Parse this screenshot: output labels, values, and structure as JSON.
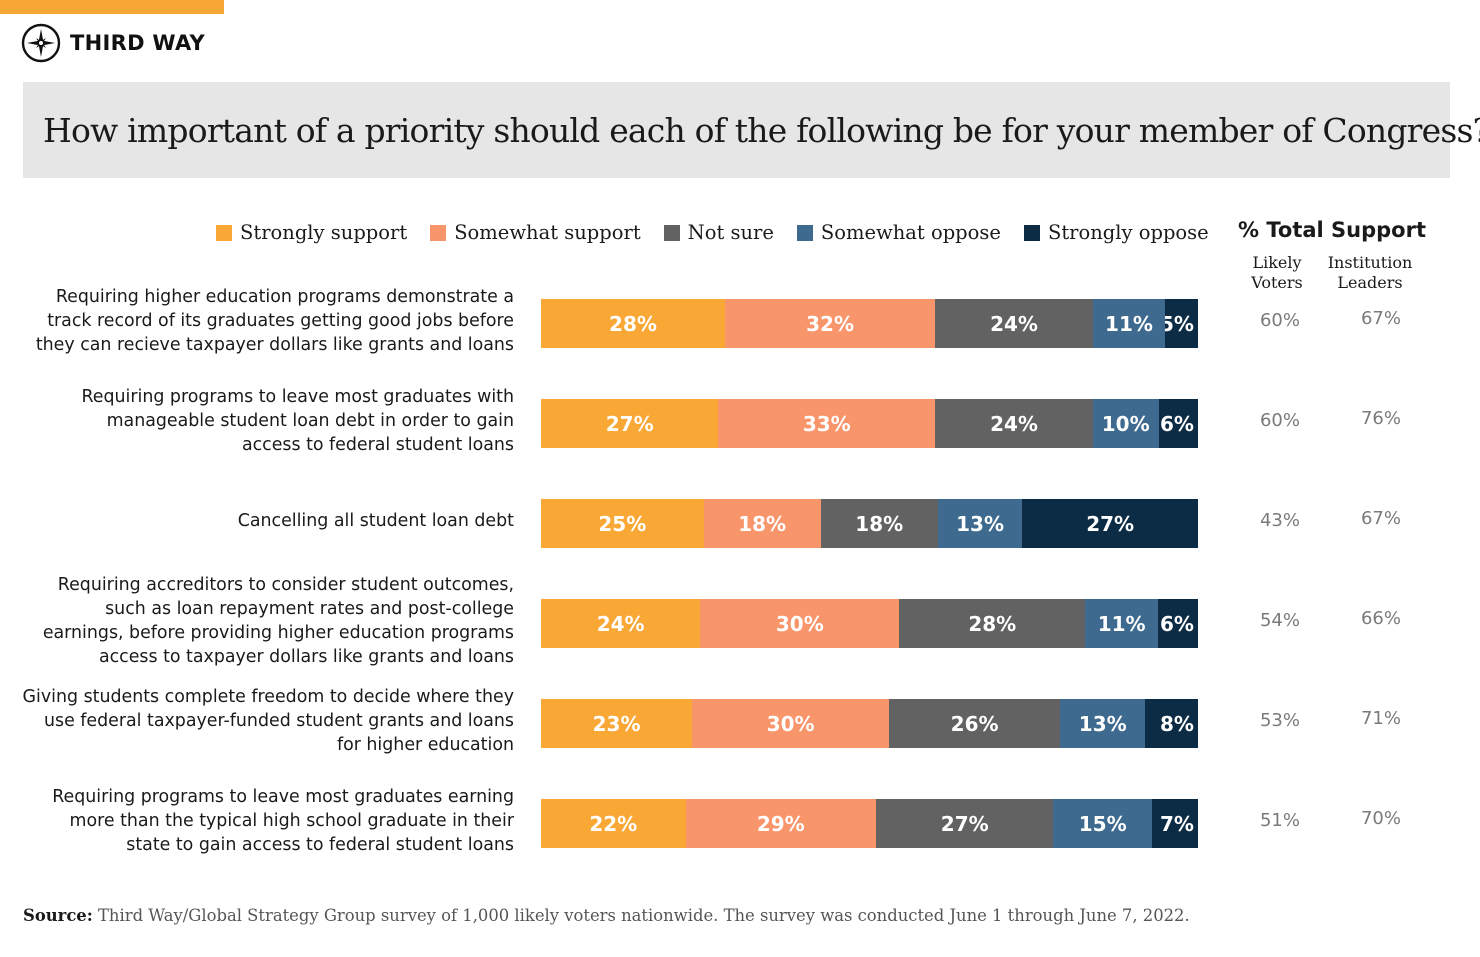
{
  "brand": {
    "name": "THIRD WAY"
  },
  "title": "How important of a priority should each of the following be for your member of Congress?",
  "total_support": {
    "heading": "% Total Support",
    "col_voters": "Likely Voters",
    "col_leaders": "Institution Leaders"
  },
  "source": {
    "label": "Source:",
    "text": "Third Way/Global Strategy Group survey of 1,000 likely voters nationwide. The survey was conducted June 1 through June 7, 2022."
  },
  "chart_data": {
    "type": "bar",
    "orientation": "horizontal",
    "stacked": true,
    "title": "How important of a priority should each of the following be for your member of Congress?",
    "legend_position": "top",
    "value_unit": "%",
    "colors": {
      "Strongly support": "#f9a735",
      "Somewhat support": "#f9956b",
      "Not sure": "#626262",
      "Somewhat oppose": "#3d6a8e",
      "Strongly oppose": "#0c2b45"
    },
    "legend": [
      "Strongly support",
      "Somewhat support",
      "Not sure",
      "Somewhat oppose",
      "Strongly oppose"
    ],
    "categories": [
      "Requiring higher education programs demonstrate a track record of its graduates getting good jobs before they can recieve taxpayer dollars like grants and loans",
      "Requiring programs to leave most graduates with manageable student loan debt in order to gain access to federal student loans",
      "Cancelling all student loan debt",
      "Requiring accreditors to consider student outcomes, such as loan repayment rates and post-college earnings, before providing higher education programs access to taxpayer dollars like grants and loans",
      "Giving students complete freedom to decide where they use federal taxpayer-funded student grants and loans for higher education",
      "Requiring programs to leave most graduates earning more than the typical high school graduate in their state to gain access to federal student loans"
    ],
    "category_lines": [
      [
        "Requiring higher education programs demonstrate a",
        "track record of its graduates getting good jobs before",
        "they can recieve taxpayer dollars like grants and loans"
      ],
      [
        "Requiring programs to leave most graduates with",
        "manageable student loan debt in order to gain",
        "access to federal student loans"
      ],
      [
        "Cancelling all student loan debt"
      ],
      [
        "Requiring accreditors to consider student outcomes,",
        "such as loan repayment rates and post-college",
        "earnings, before providing higher education programs",
        "access to taxpayer dollars like grants and loans"
      ],
      [
        "Giving students complete freedom to decide where they",
        "use federal taxpayer-funded student grants and loans",
        "for higher education"
      ],
      [
        "Requiring programs to leave most graduates earning",
        "more than the typical high school graduate in their",
        "state to gain access to federal student loans"
      ]
    ],
    "series": [
      {
        "name": "Strongly support",
        "values": [
          28,
          27,
          25,
          24,
          23,
          22
        ]
      },
      {
        "name": "Somewhat support",
        "values": [
          32,
          33,
          18,
          30,
          30,
          29
        ]
      },
      {
        "name": "Not sure",
        "values": [
          24,
          24,
          18,
          28,
          26,
          27
        ]
      },
      {
        "name": "Somewhat oppose",
        "values": [
          11,
          10,
          13,
          11,
          13,
          15
        ]
      },
      {
        "name": "Strongly oppose",
        "values": [
          5,
          6,
          27,
          6,
          8,
          7
        ]
      }
    ],
    "total_support_likely_voters": [
      "60%",
      "60%",
      "43%",
      "54%",
      "53%",
      "51%"
    ],
    "total_support_institution_leaders": [
      "67%",
      "76%",
      "67%",
      "66%",
      "71%",
      "70%"
    ]
  }
}
